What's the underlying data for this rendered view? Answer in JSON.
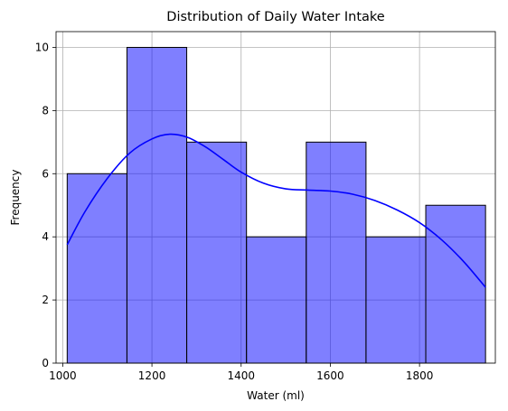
{
  "chart_data": {
    "type": "bar",
    "title": "Distribution of Daily Water Intake",
    "xlabel": "Water (ml)",
    "ylabel": "Frequency",
    "bins": [
      {
        "start": 1010,
        "end": 1144,
        "value": 6
      },
      {
        "start": 1144,
        "end": 1278,
        "value": 10
      },
      {
        "start": 1278,
        "end": 1412,
        "value": 7
      },
      {
        "start": 1412,
        "end": 1546,
        "value": 4
      },
      {
        "start": 1546,
        "end": 1680,
        "value": 7
      },
      {
        "start": 1680,
        "end": 1814,
        "value": 4
      },
      {
        "start": 1814,
        "end": 1948,
        "value": 5
      }
    ],
    "kde_curve": {
      "x": [
        1010,
        1050,
        1100,
        1150,
        1200,
        1240,
        1280,
        1320,
        1360,
        1400,
        1450,
        1500,
        1550,
        1600,
        1650,
        1700,
        1750,
        1800,
        1850,
        1900,
        1948
      ],
      "y": [
        3.75,
        4.8,
        5.85,
        6.65,
        7.1,
        7.25,
        7.15,
        6.85,
        6.45,
        6.05,
        5.7,
        5.52,
        5.48,
        5.45,
        5.35,
        5.15,
        4.85,
        4.45,
        3.9,
        3.2,
        2.4
      ]
    },
    "xlim": [
      985,
      1970
    ],
    "ylim": [
      0,
      10.5
    ],
    "xticks": [
      1000,
      1200,
      1400,
      1600,
      1800
    ],
    "yticks": [
      0,
      2,
      4,
      6,
      8,
      10
    ],
    "grid": true,
    "bar_color": "#0000ff",
    "line_color": "#0000ff"
  }
}
